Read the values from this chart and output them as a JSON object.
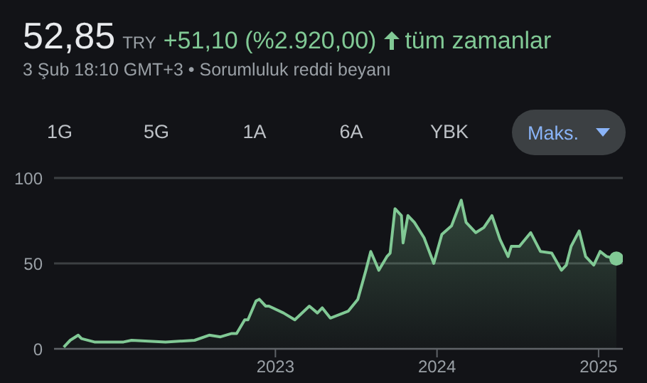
{
  "chart_data": {
    "type": "area",
    "title": "52,85",
    "subtitle": "3 Şub 18:10 GMT+3 • Sorumluluk reddi beyanı",
    "annotations": [
      "TRY",
      "+51,10 (%2.920,00)",
      "tüm zamanlar",
      "1G",
      "5G",
      "1A",
      "6A",
      "YBK",
      "Maks."
    ],
    "x": [
      2021.69,
      2021.73,
      2021.78,
      2021.8,
      2021.88,
      2022.06,
      2022.11,
      2022.32,
      2022.5,
      2022.59,
      2022.66,
      2022.73,
      2022.76,
      2022.81,
      2022.83,
      2022.88,
      2022.9,
      2022.94,
      2022.96,
      2023.05,
      2023.12,
      2023.21,
      2023.26,
      2023.29,
      2023.34,
      2023.45,
      2023.51,
      2023.56,
      2023.59,
      2023.64,
      2023.69,
      2023.71,
      2023.74,
      2023.78,
      2023.79,
      2023.82,
      2023.86,
      2023.92,
      2023.98,
      2024.03,
      2024.09,
      2024.15,
      2024.18,
      2024.24,
      2024.29,
      2024.34,
      2024.39,
      2024.44,
      2024.46,
      2024.51,
      2024.58,
      2024.64,
      2024.71,
      2024.77,
      2024.8,
      2024.83,
      2024.88,
      2024.92,
      2024.97,
      2025.01,
      2025.05,
      2025.11
    ],
    "series": [
      {
        "color": "#81c995",
        "values": [
          1,
          5,
          8,
          6,
          4,
          4,
          5,
          4,
          5,
          8,
          7,
          9,
          9,
          17,
          17,
          28,
          29,
          25,
          25,
          21,
          17,
          25,
          21,
          24,
          18,
          22,
          29,
          46,
          57,
          46,
          54,
          56,
          82,
          78,
          62,
          78,
          74,
          65,
          50,
          67,
          72,
          87,
          74,
          68,
          71,
          78,
          64,
          54,
          60,
          60,
          68,
          57,
          56,
          46,
          49,
          60,
          69,
          54,
          49,
          57,
          54,
          52.85
        ]
      }
    ],
    "xlim": [
      2021.63,
      2025.15
    ],
    "xticks": [
      2023,
      2024,
      2025
    ],
    "ylim": [
      0,
      100
    ],
    "yticks": [
      0,
      50,
      100
    ],
    "grid": "y"
  }
}
